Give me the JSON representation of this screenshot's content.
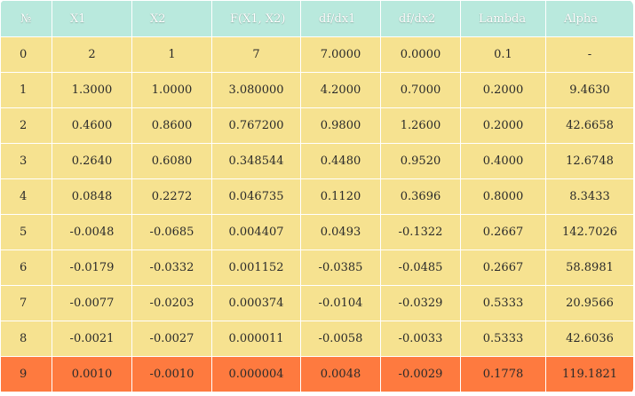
{
  "table": {
    "columns": [
      "№",
      "X1",
      "X2",
      "F(X1, X2)",
      "df/dx1",
      "df/dx2",
      "Lambda",
      "Alpha"
    ],
    "rows": [
      [
        "0",
        "2",
        "1",
        "7",
        "7.0000",
        "0.0000",
        "0.1",
        "-"
      ],
      [
        "1",
        "1.3000",
        "1.0000",
        "3.080000",
        "4.2000",
        "0.7000",
        "0.2000",
        "9.4630"
      ],
      [
        "2",
        "0.4600",
        "0.8600",
        "0.767200",
        "0.9800",
        "1.2600",
        "0.2000",
        "42.6658"
      ],
      [
        "3",
        "0.2640",
        "0.6080",
        "0.348544",
        "0.4480",
        "0.9520",
        "0.4000",
        "12.6748"
      ],
      [
        "4",
        "0.0848",
        "0.2272",
        "0.046735",
        "0.1120",
        "0.3696",
        "0.8000",
        "8.3433"
      ],
      [
        "5",
        "-0.0048",
        "-0.0685",
        "0.004407",
        "0.0493",
        "-0.1322",
        "0.2667",
        "142.7026"
      ],
      [
        "6",
        "-0.0179",
        "-0.0332",
        "0.001152",
        "-0.0385",
        "-0.0485",
        "0.2667",
        "58.8981"
      ],
      [
        "7",
        "-0.0077",
        "-0.0203",
        "0.000374",
        "-0.0104",
        "-0.0329",
        "0.5333",
        "20.9566"
      ],
      [
        "8",
        "-0.0021",
        "-0.0027",
        "0.000011",
        "-0.0058",
        "-0.0033",
        "0.5333",
        "42.6036"
      ],
      [
        "9",
        "0.0010",
        "-0.0010",
        "0.000004",
        "0.0048",
        "-0.0029",
        "0.1778",
        "119.1821"
      ]
    ]
  },
  "colors": {
    "header_bg": "#b9e9dd",
    "row_bg": "#f6e290",
    "highlight_row_bg": "#fe7a3f"
  }
}
